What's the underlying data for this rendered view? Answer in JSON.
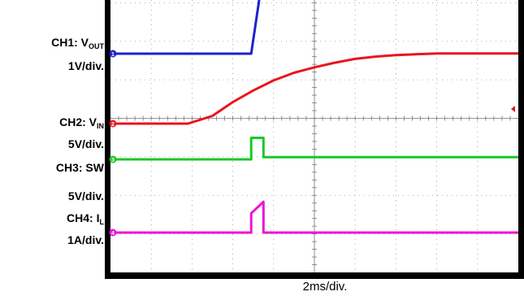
{
  "channels": [
    {
      "prefix": "CH1: V",
      "sub": "OUT",
      "scale": "1V/div.",
      "color": "#1e22c8",
      "marker": "1"
    },
    {
      "prefix": "CH2: V",
      "sub": "IN",
      "scale": "5V/div.",
      "color": "#e8161e",
      "marker": "2"
    },
    {
      "prefix": "CH3: SW",
      "sub": "",
      "scale": "5V/div.",
      "color": "#18c828",
      "marker": "3"
    },
    {
      "prefix": "CH4: I",
      "sub": "L",
      "scale": "1A/div.",
      "color": "#ee14d4",
      "marker": "4"
    }
  ],
  "timebase": "2ms/div.",
  "chart_data": {
    "type": "line",
    "title": "",
    "xlabel": "2ms/div.",
    "x_unit": "ms",
    "xlim": [
      0,
      20
    ],
    "grid": true,
    "grid_divisions": {
      "x": 10,
      "y": 8
    },
    "series": [
      {
        "name": "CH1: VOUT",
        "unit": "V",
        "points": [
          [
            0,
            0.0
          ],
          [
            6.9,
            0.0
          ],
          [
            7.6,
            2.5
          ],
          [
            20,
            2.5
          ]
        ]
      },
      {
        "name": "CH2: VIN",
        "unit": "V",
        "points": [
          [
            0,
            0.0
          ],
          [
            3.8,
            0.0
          ],
          [
            5.0,
            1.0
          ],
          [
            6.0,
            2.8
          ],
          [
            7.0,
            4.3
          ],
          [
            8.0,
            5.6
          ],
          [
            9.0,
            6.6
          ],
          [
            10.0,
            7.3
          ],
          [
            11.0,
            7.9
          ],
          [
            12.0,
            8.4
          ],
          [
            13.0,
            8.7
          ],
          [
            14.0,
            8.9
          ],
          [
            16.0,
            9.1
          ],
          [
            20.0,
            9.1
          ]
        ]
      },
      {
        "name": "CH3: SW",
        "unit": "V",
        "points": [
          [
            0,
            0.0
          ],
          [
            6.9,
            0.0
          ],
          [
            6.9,
            2.8
          ],
          [
            7.5,
            2.8
          ],
          [
            7.5,
            0.3
          ],
          [
            20,
            0.3
          ]
        ]
      },
      {
        "name": "CH4: IL",
        "unit": "A",
        "points": [
          [
            0,
            0.0
          ],
          [
            6.9,
            0.0
          ],
          [
            6.9,
            0.5
          ],
          [
            7.5,
            0.8
          ],
          [
            7.5,
            0.0
          ],
          [
            20,
            0.0
          ]
        ]
      }
    ]
  }
}
